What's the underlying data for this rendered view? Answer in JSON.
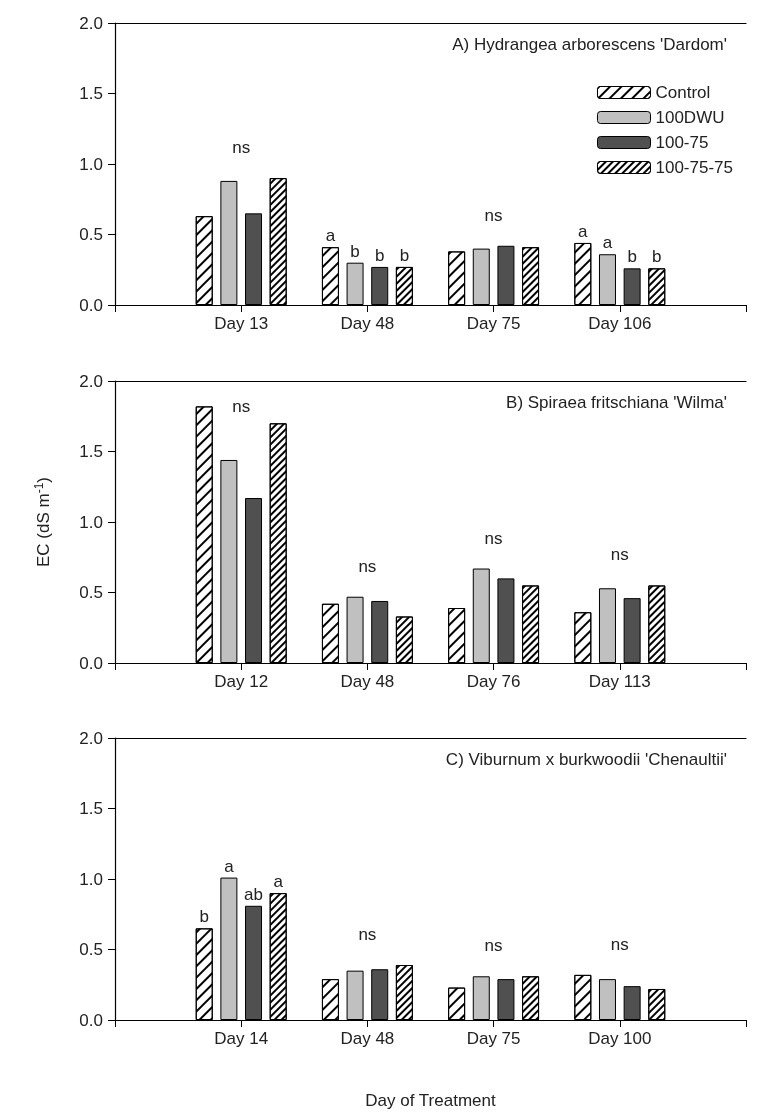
{
  "chart_data": [
    {
      "type": "bar",
      "title": "A) Hydrangea arborescens 'Dardom'",
      "categories": [
        null,
        "Day 13",
        "Day 48",
        "Day 75",
        "Day 106",
        null
      ],
      "ylim": [
        0,
        2
      ],
      "yticks": [
        {
          "value": 0,
          "label": "0.0"
        },
        {
          "value": 0.5,
          "label": "0.5"
        },
        {
          "value": 1,
          "label": "1.0"
        },
        {
          "value": 1.5,
          "label": "1.5"
        },
        {
          "value": 2,
          "label": "2.0"
        }
      ],
      "grid": false,
      "legend": "top right",
      "series": [
        {
          "name": "Control",
          "color": "#ffffff",
          "values": [
            null,
            0.63,
            0.41,
            0.38,
            0.44,
            null
          ],
          "value_labels": [
            null,
            null,
            "a",
            null,
            "a",
            null
          ]
        },
        {
          "name": "100DWU",
          "color": "#c0c0c0",
          "values": [
            null,
            0.88,
            0.3,
            0.4,
            0.36,
            null
          ],
          "value_labels": [
            null,
            null,
            "b",
            null,
            "a",
            null
          ]
        },
        {
          "name": "100-75",
          "color": "#505050",
          "values": [
            null,
            0.65,
            0.27,
            0.42,
            0.26,
            null
          ],
          "value_labels": [
            null,
            null,
            "b",
            null,
            "b",
            null
          ]
        },
        {
          "name": "100-75-75",
          "color": "#ffffff",
          "values": [
            null,
            0.9,
            0.27,
            0.41,
            0.26,
            null
          ],
          "value_labels": [
            null,
            null,
            "b",
            null,
            "b",
            null
          ]
        }
      ],
      "annotations": [
        "ns",
        "ns"
      ]
    },
    {
      "type": "bar",
      "title": "B) Spiraea fritschiana 'Wilma'",
      "ylabel": "EC (dS m$^{-1}$)",
      "categories": [
        null,
        "Day 12",
        "Day 48",
        "Day 76",
        "Day 113",
        null
      ],
      "ylim": [
        0,
        2
      ],
      "yticks": [
        {
          "value": 0,
          "label": "0.0"
        },
        {
          "value": 0.5,
          "label": "0.5"
        },
        {
          "value": 1,
          "label": "1.0"
        },
        {
          "value": 1.5,
          "label": "1.5"
        },
        {
          "value": 2,
          "label": "2.0"
        }
      ],
      "grid": false,
      "series": [
        {
          "color": "#ffffff",
          "values": [
            null,
            1.82,
            0.42,
            0.39,
            0.36,
            null
          ]
        },
        {
          "color": "#c0c0c0",
          "values": [
            null,
            1.44,
            0.47,
            0.67,
            0.53,
            null
          ]
        },
        {
          "color": "#505050",
          "values": [
            null,
            1.17,
            0.44,
            0.6,
            0.46,
            null
          ]
        },
        {
          "color": "#ffffff",
          "values": [
            null,
            1.7,
            0.33,
            0.55,
            0.55,
            null
          ]
        }
      ],
      "annotations": [
        "ns",
        "ns",
        "ns",
        "ns"
      ]
    },
    {
      "type": "bar",
      "title": "C) Viburnum x burkwoodii 'Chenaultii'",
      "xlabel": "Day of Treatment",
      "categories": [
        null,
        "Day 14",
        "Day 48",
        "Day 75",
        "Day 100",
        null
      ],
      "ylim": [
        0,
        2
      ],
      "yticks": [
        {
          "value": 0,
          "label": "0.0"
        },
        {
          "value": 0.5,
          "label": "0.5"
        },
        {
          "value": 1,
          "label": "1.0"
        },
        {
          "value": 1.5,
          "label": "1.5"
        },
        {
          "value": 2,
          "label": "2.0"
        }
      ],
      "grid": false,
      "series": [
        {
          "color": "#ffffff",
          "values": [
            null,
            0.65,
            0.29,
            0.23,
            0.32,
            null
          ],
          "value_labels": [
            null,
            "b",
            null,
            null,
            null,
            null
          ]
        },
        {
          "color": "#c0c0c0",
          "values": [
            null,
            1.01,
            0.35,
            0.31,
            0.29,
            null
          ],
          "value_labels": [
            null,
            "a",
            null,
            null,
            null,
            null
          ]
        },
        {
          "color": "#505050",
          "values": [
            null,
            0.81,
            0.36,
            0.29,
            0.24,
            null
          ],
          "value_labels": [
            null,
            "ab",
            null,
            null,
            null,
            null
          ]
        },
        {
          "color": "#ffffff",
          "values": [
            null,
            0.9,
            0.39,
            0.31,
            0.22,
            null
          ],
          "value_labels": [
            null,
            "a",
            null,
            null,
            null,
            null
          ]
        }
      ],
      "annotations": [
        "ns",
        "ns",
        "ns"
      ]
    }
  ]
}
